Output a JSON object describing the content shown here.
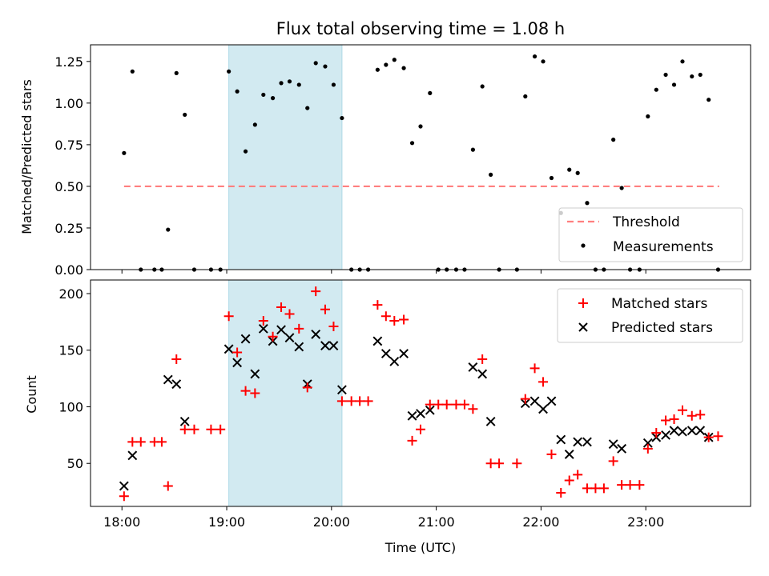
{
  "title": "Flux total observing time = 1.08 h",
  "colors": {
    "threshold": "#ff7f7f",
    "measurements": "#000000",
    "matched": "#ff0000",
    "predicted": "#000000",
    "span": "#add8e6"
  },
  "chart_data": [
    {
      "type": "scatter",
      "ylabel": "Matched/Predicted stars",
      "xlim": [
        17.7,
        24.0
      ],
      "ylim": [
        0,
        1.35
      ],
      "yticks": [
        0.0,
        0.25,
        0.5,
        0.75,
        1.0,
        1.25
      ],
      "ytick_labels": [
        "0.00",
        "0.25",
        "0.50",
        "0.75",
        "1.00",
        "1.25"
      ],
      "xticks": [
        18,
        19,
        20,
        21,
        22,
        23
      ],
      "highlight_span": [
        19.02,
        20.1
      ],
      "legend": {
        "position": "lower-right",
        "entries": [
          {
            "key": "threshold",
            "label": "Threshold",
            "marker": "dash",
            "color": "#ff7f7f"
          },
          {
            "key": "measurements",
            "label": "Measurements",
            "marker": "dot",
            "color": "#000000"
          }
        ]
      },
      "threshold": {
        "name": "Threshold",
        "x": [
          18.02,
          23.7
        ],
        "y": 0.5
      },
      "measurements": {
        "name": "Measurements",
        "x": [
          18.02,
          18.1,
          18.18,
          18.31,
          18.38,
          18.44,
          18.52,
          18.6,
          18.69,
          18.85,
          18.94,
          19.02,
          19.1,
          19.18,
          19.27,
          19.35,
          19.44,
          19.52,
          19.6,
          19.69,
          19.77,
          19.85,
          19.94,
          20.02,
          20.1,
          20.19,
          20.27,
          20.35,
          20.44,
          20.52,
          20.6,
          20.69,
          20.77,
          20.85,
          20.94,
          21.02,
          21.1,
          21.19,
          21.27,
          21.35,
          21.44,
          21.52,
          21.6,
          21.77,
          21.85,
          21.94,
          22.02,
          22.1,
          22.19,
          22.27,
          22.35,
          22.44,
          22.52,
          22.6,
          22.69,
          22.77,
          22.85,
          22.94,
          23.02,
          23.1,
          23.19,
          23.27,
          23.35,
          23.44,
          23.52,
          23.6,
          23.69
        ],
        "y": [
          0.7,
          1.19,
          0.0,
          0.0,
          0.0,
          0.24,
          1.18,
          0.93,
          0.0,
          0.0,
          0.0,
          1.19,
          1.07,
          0.71,
          0.87,
          1.05,
          1.03,
          1.12,
          1.13,
          1.11,
          0.97,
          1.24,
          1.22,
          1.11,
          0.91,
          0.0,
          0.0,
          0.0,
          1.2,
          1.23,
          1.26,
          1.21,
          0.76,
          0.86,
          1.06,
          0.0,
          0.0,
          0.0,
          0.0,
          0.72,
          1.1,
          0.57,
          0.0,
          0.0,
          1.04,
          1.28,
          1.25,
          0.55,
          0.34,
          0.6,
          0.58,
          0.4,
          0.0,
          0.0,
          0.78,
          0.49,
          0.0,
          0.0,
          0.92,
          1.08,
          1.17,
          1.11,
          1.25,
          1.16,
          1.17,
          1.02,
          0.0
        ]
      }
    },
    {
      "type": "scatter",
      "ylabel": "Count",
      "xlabel": "Time (UTC)",
      "xlim": [
        17.7,
        24.0
      ],
      "ylim": [
        12,
        212
      ],
      "yticks": [
        50,
        100,
        150,
        200
      ],
      "xticks": [
        18,
        19,
        20,
        21,
        22,
        23
      ],
      "xtick_labels": [
        "18:00",
        "19:00",
        "20:00",
        "21:00",
        "22:00",
        "23:00"
      ],
      "highlight_span": [
        19.02,
        20.1
      ],
      "legend": {
        "position": "upper-right",
        "entries": [
          {
            "key": "matched",
            "label": "Matched stars",
            "marker": "plus",
            "color": "#ff0000"
          },
          {
            "key": "predicted",
            "label": "Predicted stars",
            "marker": "x",
            "color": "#000000"
          }
        ]
      },
      "series": [
        {
          "name": "Matched stars",
          "key": "matched",
          "x": [
            18.02,
            18.1,
            18.18,
            18.31,
            18.38,
            18.44,
            18.52,
            18.6,
            18.69,
            18.85,
            18.94,
            19.02,
            19.1,
            19.18,
            19.27,
            19.35,
            19.44,
            19.52,
            19.6,
            19.69,
            19.77,
            19.85,
            19.94,
            20.02,
            20.1,
            20.19,
            20.27,
            20.35,
            20.44,
            20.52,
            20.6,
            20.69,
            20.77,
            20.85,
            20.94,
            21.02,
            21.1,
            21.19,
            21.27,
            21.35,
            21.44,
            21.52,
            21.6,
            21.77,
            21.85,
            21.94,
            22.02,
            22.1,
            22.19,
            22.27,
            22.35,
            22.44,
            22.52,
            22.6,
            22.69,
            22.77,
            22.85,
            22.94,
            23.02,
            23.1,
            23.19,
            23.27,
            23.35,
            23.44,
            23.52,
            23.6,
            23.69
          ],
          "y": [
            21,
            69,
            69,
            69,
            69,
            30,
            142,
            80,
            80,
            80,
            80,
            180,
            148,
            114,
            112,
            176,
            162,
            188,
            182,
            169,
            117,
            202,
            186,
            171,
            105,
            105,
            105,
            105,
            190,
            180,
            176,
            177,
            70,
            80,
            102,
            102,
            102,
            102,
            102,
            98,
            142,
            50,
            50,
            50,
            107,
            134,
            122,
            58,
            24,
            35,
            40,
            28,
            28,
            28,
            52,
            31,
            31,
            31,
            63,
            77,
            88,
            89,
            97,
            92,
            93,
            73,
            74
          ]
        },
        {
          "name": "Predicted stars",
          "key": "predicted",
          "x": [
            18.02,
            18.1,
            18.44,
            18.52,
            18.6,
            19.02,
            19.1,
            19.18,
            19.27,
            19.35,
            19.44,
            19.52,
            19.6,
            19.69,
            19.77,
            19.85,
            19.94,
            20.02,
            20.1,
            20.44,
            20.52,
            20.6,
            20.69,
            20.77,
            20.85,
            20.94,
            21.35,
            21.44,
            21.52,
            21.85,
            21.94,
            22.02,
            22.1,
            22.19,
            22.27,
            22.35,
            22.44,
            22.69,
            22.77,
            23.02,
            23.1,
            23.19,
            23.27,
            23.35,
            23.44,
            23.52,
            23.6
          ],
          "y": [
            30,
            57,
            124,
            120,
            87,
            151,
            139,
            160,
            129,
            169,
            158,
            168,
            161,
            153,
            120,
            164,
            154,
            154,
            115,
            158,
            147,
            140,
            147,
            92,
            94,
            97,
            135,
            129,
            87,
            103,
            105,
            98,
            105,
            71,
            58,
            69,
            69,
            67,
            63,
            68,
            73,
            75,
            79,
            78,
            79,
            79,
            73
          ]
        }
      ]
    }
  ]
}
